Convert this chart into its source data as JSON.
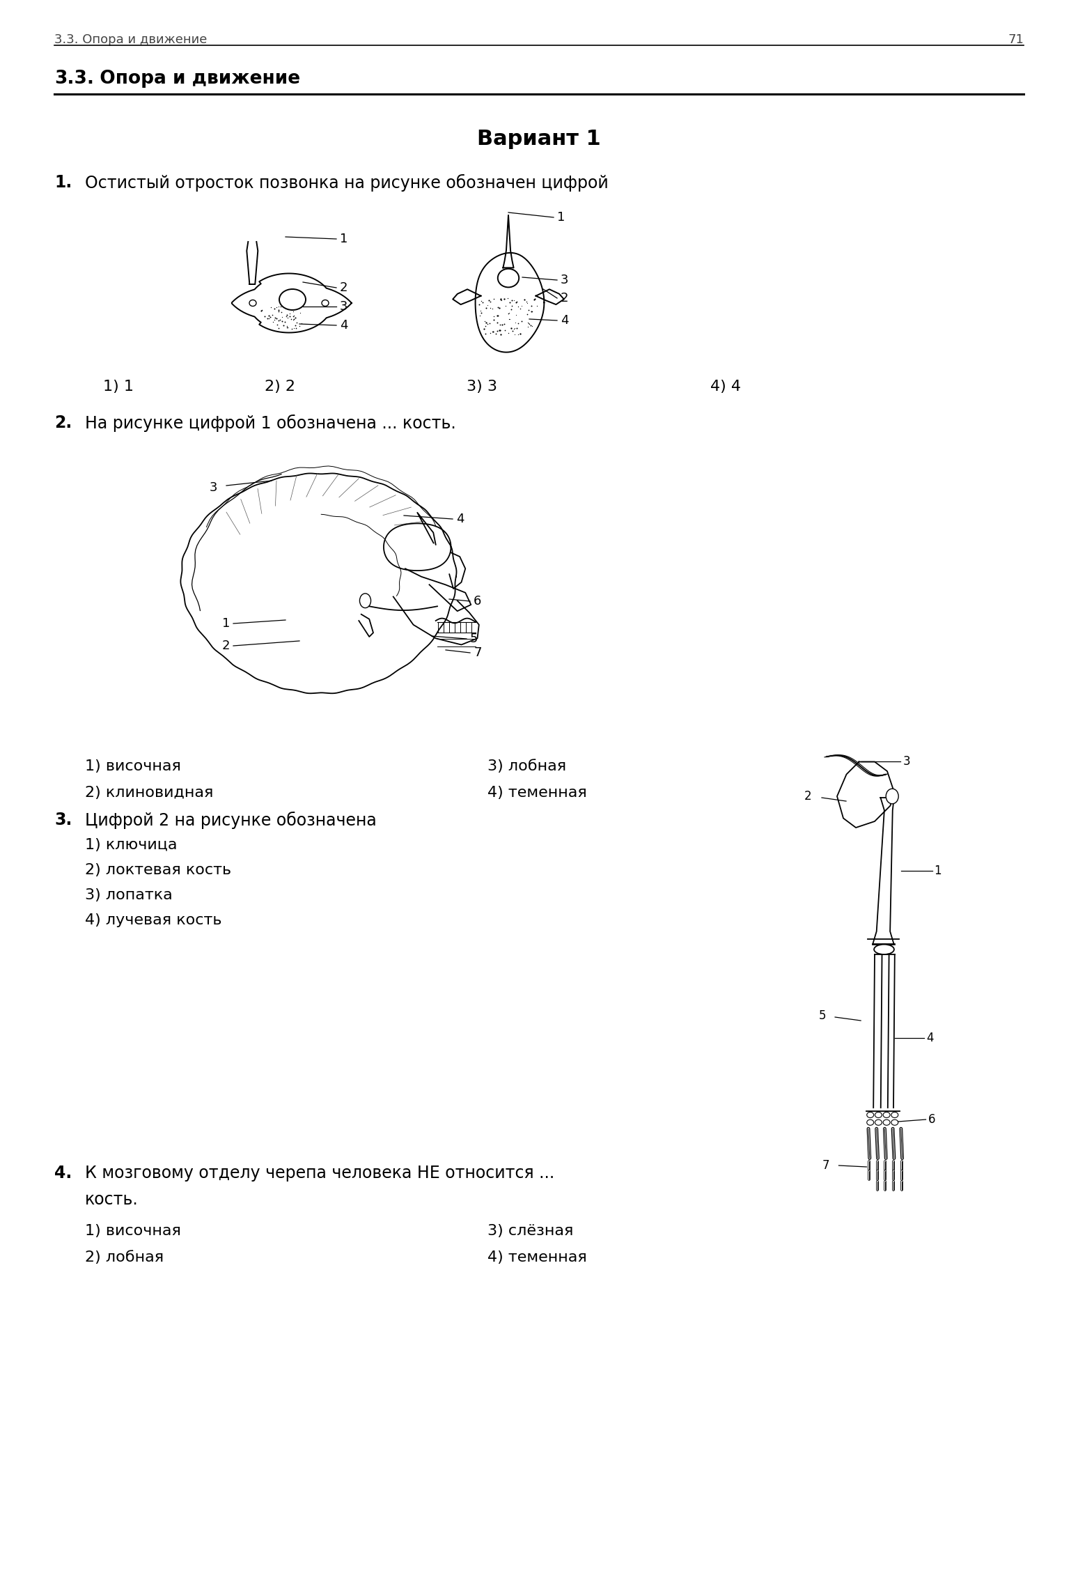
{
  "page_num": "71",
  "header_text": "3.3. Опора и движение",
  "section_title_num": "3.3.",
  "section_title_rest": "  Опора и движение",
  "variant_title": "Вариант 1",
  "bg_color": "#ffffff",
  "q1_text": "Остистый отросток позвонка на рисунке обозначен цифрой",
  "q1_answers": [
    "1) 1",
    "2) 2",
    "3) 3",
    "4) 4"
  ],
  "q2_text": "На рисунке цифрой 1 обозначена ... кость.",
  "q2_ans_left": [
    "1) височная",
    "2) клиновидная"
  ],
  "q2_ans_right": [
    "3) лобная",
    "4) теменная"
  ],
  "q3_text": "Цифрой 2 на рисунке обозначена",
  "q3_answers": [
    "1) ключица",
    "2) локтевая кость",
    "3) лопатка",
    "4) лучевая кость"
  ],
  "q4_text1": "К мозговому отделу черепа человека НЕ относится ...",
  "q4_text2": "кость.",
  "q4_ans_left": [
    "1) височная",
    "2) лобная"
  ],
  "q4_ans_right": [
    "3) слёзная",
    "4) теменная"
  ]
}
